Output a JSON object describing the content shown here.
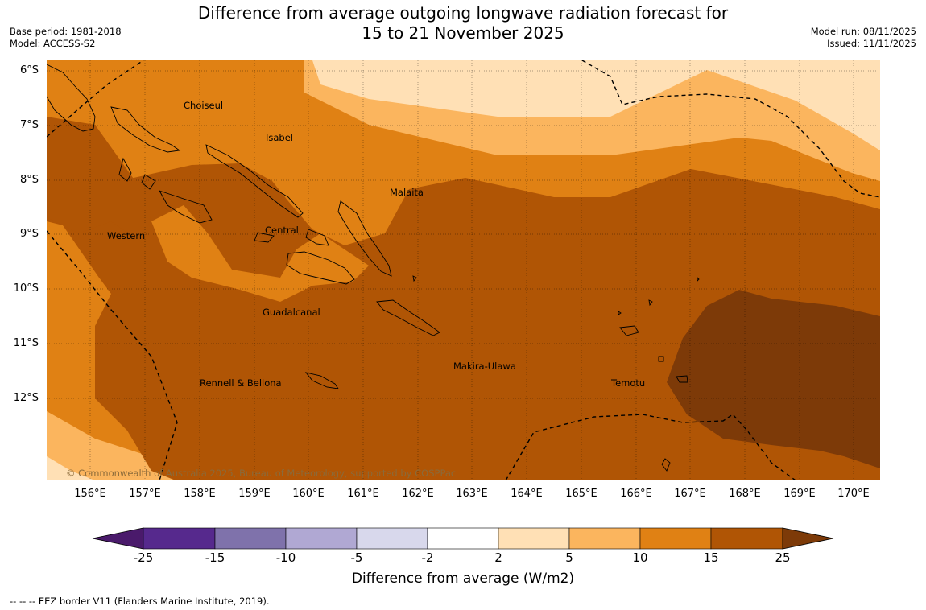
{
  "title": {
    "line1": "Difference from average outgoing longwave radiation forecast for",
    "line2": "15 to 21 November 2025"
  },
  "meta_left": {
    "base_period": "Base period: 1981-2018",
    "model": "Model: ACCESS-S2"
  },
  "meta_right": {
    "model_run": "Model run: 08/11/2025",
    "issued": "Issued: 11/11/2025"
  },
  "map": {
    "lat_labels": [
      "6°S",
      "7°S",
      "8°S",
      "9°S",
      "10°S",
      "11°S",
      "12°S"
    ],
    "lon_labels": [
      "156°E",
      "157°E",
      "158°E",
      "159°E",
      "160°E",
      "161°E",
      "162°E",
      "163°E",
      "164°E",
      "165°E",
      "166°E",
      "167°E",
      "168°E",
      "169°E",
      "170°E"
    ],
    "places": [
      {
        "name": "Choiseul",
        "id": "choiseul"
      },
      {
        "name": "Isabel",
        "id": "isabel"
      },
      {
        "name": "Malaita",
        "id": "malaita"
      },
      {
        "name": "Western",
        "id": "western"
      },
      {
        "name": "Central",
        "id": "central"
      },
      {
        "name": "Guadalcanal",
        "id": "guadalcanal"
      },
      {
        "name": "Makira-Ulawa",
        "id": "makira-ulawa"
      },
      {
        "name": "Rennell & Bellona",
        "id": "rennell-bellona"
      },
      {
        "name": "Temotu",
        "id": "temotu"
      }
    ],
    "copyright": "© Commonwealth of Australia 2025, Bureau of Meteorology, supported by COSPPac"
  },
  "colorbar": {
    "labels": [
      "-25",
      "-15",
      "-10",
      "-5",
      "-2",
      "2",
      "5",
      "10",
      "15",
      "25"
    ],
    "colors": [
      "#4a1a6b",
      "#56298d",
      "#7f72ab",
      "#b0a8d3",
      "#d8d8ec",
      "#ffffff",
      "#ffe0b5",
      "#fbb55e",
      "#e08114",
      "#b05505",
      "#7d3a08"
    ],
    "title": "Difference from average (W/m2)"
  },
  "legend_note": "-- -- -- EEZ border V11 (Flanders Marine Institute, 2019)."
}
